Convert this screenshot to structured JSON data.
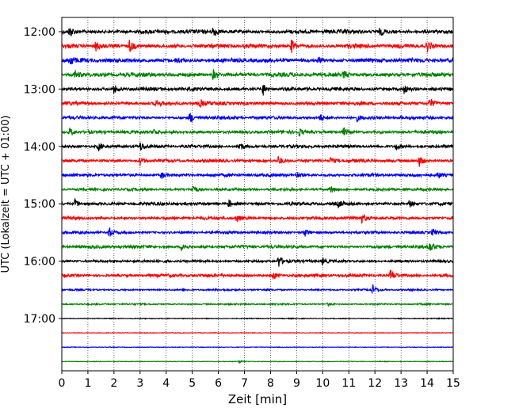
{
  "chart_data": {
    "type": "line",
    "title": "",
    "xlabel": "Zeit  [min]",
    "ylabel": "UTC (Lokalzeit = UTC + 01:00)",
    "xlim": [
      0,
      15
    ],
    "x_ticks": [
      0,
      1,
      2,
      3,
      4,
      5,
      6,
      7,
      8,
      9,
      10,
      11,
      12,
      13,
      14,
      15
    ],
    "x_tick_labels": [
      "0",
      "1",
      "2",
      "3",
      "4",
      "5",
      "6",
      "7",
      "8",
      "9",
      "10",
      "11",
      "12",
      "13",
      "14",
      "15"
    ],
    "y_ticks": [
      "12:00",
      "13:00",
      "14:00",
      "15:00",
      "16:00",
      "17:00"
    ],
    "grid": "vertical dotted lines at each minute",
    "trace_interval_minutes": 15,
    "trace_colors_cycle": [
      "#000000",
      "#ff0000",
      "#0000ff",
      "#008000"
    ],
    "traces": [
      {
        "start": "12:00",
        "color": "#000000",
        "activity": 0.9,
        "events": [
          {
            "t": 0.3,
            "a": 0.9
          },
          {
            "t": 5.8,
            "a": 0.9
          },
          {
            "t": 12.2,
            "a": 0.5
          }
        ]
      },
      {
        "start": "12:15",
        "color": "#ff0000",
        "activity": 0.9,
        "events": [
          {
            "t": 1.3,
            "a": 0.7
          },
          {
            "t": 2.6,
            "a": 1.0
          },
          {
            "t": 8.8,
            "a": 1.0
          },
          {
            "t": 14.0,
            "a": 1.0
          }
        ]
      },
      {
        "start": "12:30",
        "color": "#0000ff",
        "activity": 0.9,
        "events": [
          {
            "t": 0.3,
            "a": 0.9
          },
          {
            "t": 4.4,
            "a": 0.6
          },
          {
            "t": 9.8,
            "a": 0.5
          }
        ]
      },
      {
        "start": "12:45",
        "color": "#008000",
        "activity": 0.9,
        "events": [
          {
            "t": 0.5,
            "a": 0.7
          },
          {
            "t": 5.8,
            "a": 0.8
          },
          {
            "t": 10.8,
            "a": 0.6
          }
        ]
      },
      {
        "start": "13:00",
        "color": "#000000",
        "activity": 0.8,
        "events": [
          {
            "t": 2.0,
            "a": 0.6
          },
          {
            "t": 7.7,
            "a": 1.0
          },
          {
            "t": 13.1,
            "a": 0.8
          }
        ]
      },
      {
        "start": "13:15",
        "color": "#ff0000",
        "activity": 0.8,
        "events": [
          {
            "t": 3.6,
            "a": 0.5
          },
          {
            "t": 5.3,
            "a": 0.5
          },
          {
            "t": 14.1,
            "a": 0.9
          }
        ]
      },
      {
        "start": "13:30",
        "color": "#0000ff",
        "activity": 0.7,
        "events": [
          {
            "t": 4.9,
            "a": 0.9
          },
          {
            "t": 9.9,
            "a": 0.6
          },
          {
            "t": 11.3,
            "a": 0.5
          }
        ]
      },
      {
        "start": "13:45",
        "color": "#008000",
        "activity": 0.7,
        "events": [
          {
            "t": 0.3,
            "a": 0.6
          },
          {
            "t": 3.5,
            "a": 0.5
          },
          {
            "t": 9.1,
            "a": 0.6
          },
          {
            "t": 10.8,
            "a": 0.7
          }
        ]
      },
      {
        "start": "14:00",
        "color": "#000000",
        "activity": 0.7,
        "events": [
          {
            "t": 1.4,
            "a": 0.7
          },
          {
            "t": 3.0,
            "a": 0.6
          },
          {
            "t": 6.8,
            "a": 0.8
          },
          {
            "t": 12.8,
            "a": 0.6
          }
        ]
      },
      {
        "start": "14:15",
        "color": "#ff0000",
        "activity": 0.7,
        "events": [
          {
            "t": 3.0,
            "a": 0.7
          },
          {
            "t": 8.3,
            "a": 0.8
          },
          {
            "t": 10.3,
            "a": 0.5
          },
          {
            "t": 13.7,
            "a": 0.9
          }
        ]
      },
      {
        "start": "14:30",
        "color": "#0000ff",
        "activity": 0.7,
        "events": [
          {
            "t": 3.8,
            "a": 0.6
          },
          {
            "t": 9.0,
            "a": 0.5
          },
          {
            "t": 14.4,
            "a": 0.6
          }
        ]
      },
      {
        "start": "14:45",
        "color": "#008000",
        "activity": 0.6,
        "events": [
          {
            "t": 5.0,
            "a": 0.9
          },
          {
            "t": 10.3,
            "a": 0.6
          }
        ]
      },
      {
        "start": "15:00",
        "color": "#000000",
        "activity": 0.7,
        "events": [
          {
            "t": 0.5,
            "a": 0.6
          },
          {
            "t": 6.4,
            "a": 0.6
          },
          {
            "t": 10.6,
            "a": 0.5
          },
          {
            "t": 13.3,
            "a": 0.6
          }
        ]
      },
      {
        "start": "15:15",
        "color": "#ff0000",
        "activity": 0.7,
        "events": [
          {
            "t": 6.7,
            "a": 0.7
          },
          {
            "t": 11.5,
            "a": 0.6
          }
        ]
      },
      {
        "start": "15:30",
        "color": "#0000ff",
        "activity": 0.6,
        "events": [
          {
            "t": 1.8,
            "a": 0.9
          },
          {
            "t": 9.3,
            "a": 0.7
          },
          {
            "t": 14.2,
            "a": 0.6
          }
        ]
      },
      {
        "start": "15:45",
        "color": "#008000",
        "activity": 0.7,
        "events": [
          {
            "t": 4.6,
            "a": 0.8
          },
          {
            "t": 14.1,
            "a": 0.8
          }
        ]
      },
      {
        "start": "16:00",
        "color": "#000000",
        "activity": 0.6,
        "events": [
          {
            "t": 8.3,
            "a": 1.0
          },
          {
            "t": 10.0,
            "a": 0.6
          }
        ]
      },
      {
        "start": "16:15",
        "color": "#ff0000",
        "activity": 0.7,
        "events": [
          {
            "t": 8.1,
            "a": 0.6
          },
          {
            "t": 12.6,
            "a": 1.0
          }
        ]
      },
      {
        "start": "16:30",
        "color": "#0000ff",
        "activity": 0.4,
        "events": [
          {
            "t": 11.9,
            "a": 0.8
          }
        ]
      },
      {
        "start": "16:45",
        "color": "#008000",
        "activity": 0.35,
        "events": [
          {
            "t": 10.2,
            "a": 0.3
          }
        ]
      },
      {
        "start": "17:00",
        "color": "#000000",
        "activity": 0.2,
        "events": []
      },
      {
        "start": "17:15",
        "color": "#ff0000",
        "activity": 0.1,
        "events": []
      },
      {
        "start": "17:30",
        "color": "#0000ff",
        "activity": 0.1,
        "events": []
      },
      {
        "start": "17:45",
        "color": "#008000",
        "activity": 0.15,
        "events": [
          {
            "t": 6.8,
            "a": 0.2
          }
        ]
      }
    ]
  }
}
